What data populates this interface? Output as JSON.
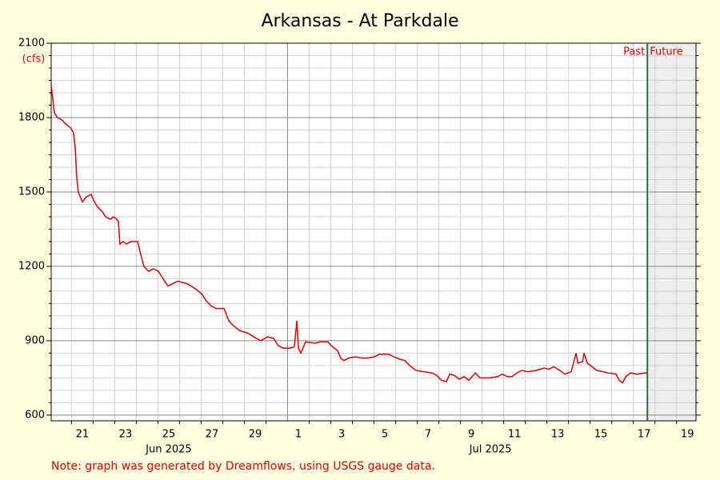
{
  "chart_data": {
    "type": "line",
    "title": "Arkansas - At Parkdale",
    "y_label": "(cfs)",
    "note": "Note: graph was generated by Dreamflows, using USGS gauge data.",
    "xlim": [
      20.06,
      49.9
    ],
    "ylim": [
      577,
      2100
    ],
    "yticks": [
      600,
      900,
      1200,
      1500,
      1800,
      2100
    ],
    "yminorticks": [
      650,
      700,
      750,
      800,
      850,
      950,
      1000,
      1050,
      1100,
      1150,
      1250,
      1300,
      1350,
      1400,
      1450,
      1550,
      1600,
      1650,
      1700,
      1750,
      1850,
      1900,
      1950,
      2000,
      2050
    ],
    "xticks": [
      {
        "value": 21.5,
        "label": "21"
      },
      {
        "value": 23.5,
        "label": "23"
      },
      {
        "value": 25.5,
        "label": "25"
      },
      {
        "value": 27.5,
        "label": "27"
      },
      {
        "value": 29.5,
        "label": "29"
      },
      {
        "value": 31.5,
        "label": "1"
      },
      {
        "value": 33.5,
        "label": "3"
      },
      {
        "value": 35.5,
        "label": "5"
      },
      {
        "value": 37.5,
        "label": "7"
      },
      {
        "value": 39.5,
        "label": "9"
      },
      {
        "value": 41.5,
        "label": "11"
      },
      {
        "value": 43.5,
        "label": "13"
      },
      {
        "value": 45.5,
        "label": "15"
      },
      {
        "value": 47.5,
        "label": "17"
      },
      {
        "value": 49.5,
        "label": "19"
      }
    ],
    "xminorticks": [
      21,
      22,
      23,
      24,
      25,
      26,
      27,
      28,
      29,
      30,
      32,
      33,
      34,
      35,
      36,
      37,
      38,
      39,
      40,
      41,
      42,
      43,
      44,
      45,
      46,
      47,
      48,
      49
    ],
    "month_lines": [
      31
    ],
    "month_labels": [
      {
        "value": 25.5,
        "label": "Jun 2025"
      },
      {
        "value": 40.39,
        "label": "Jul 2025"
      }
    ],
    "now": {
      "value": 47.65,
      "past_label": "Past",
      "future_label": "Future"
    },
    "grid": true,
    "series": [
      {
        "color": "#dd0000",
        "x": [
          20.06,
          20.13,
          20.2,
          20.35,
          20.57,
          20.72,
          20.94,
          21.09,
          21.17,
          21.24,
          21.31,
          21.5,
          21.69,
          21.91,
          22.06,
          22.2,
          22.43,
          22.57,
          22.8,
          22.94,
          23.09,
          23.17,
          23.24,
          23.39,
          23.54,
          23.76,
          24.06,
          24.2,
          24.35,
          24.57,
          24.8,
          25.02,
          25.24,
          25.46,
          25.69,
          25.91,
          26.35,
          26.72,
          27.02,
          27.24,
          27.46,
          27.69,
          28.06,
          28.28,
          28.5,
          28.8,
          29.17,
          29.54,
          29.76,
          30.06,
          30.35,
          30.57,
          30.8,
          31.09,
          31.31,
          31.43,
          31.5,
          31.61,
          31.69,
          31.83,
          32.28,
          32.5,
          32.87,
          33.02,
          33.31,
          33.46,
          33.61,
          33.83,
          34.13,
          34.43,
          34.72,
          35.02,
          35.24,
          35.69,
          35.91,
          36.2,
          36.43,
          36.65,
          36.94,
          37.31,
          37.69,
          37.91,
          38.13,
          38.35,
          38.5,
          38.72,
          38.94,
          39.17,
          39.39,
          39.54,
          39.69,
          39.91,
          40.35,
          40.72,
          40.94,
          41.17,
          41.39,
          41.61,
          41.83,
          42.13,
          42.5,
          42.87,
          43.09,
          43.31,
          43.61,
          43.83,
          44.13,
          44.35,
          44.43,
          44.65,
          44.72,
          44.87,
          45.09,
          45.31,
          45.61,
          45.83,
          46.2,
          46.35,
          46.5,
          46.65,
          46.87,
          47.17,
          47.54,
          47.65
        ],
        "values": [
          1930,
          1880,
          1820,
          1800,
          1790,
          1775,
          1760,
          1740,
          1680,
          1560,
          1500,
          1460,
          1480,
          1490,
          1460,
          1440,
          1420,
          1400,
          1390,
          1400,
          1390,
          1380,
          1290,
          1300,
          1290,
          1300,
          1300,
          1250,
          1200,
          1180,
          1190,
          1180,
          1150,
          1120,
          1130,
          1140,
          1130,
          1110,
          1090,
          1060,
          1040,
          1030,
          1030,
          980,
          960,
          940,
          930,
          910,
          900,
          915,
          910,
          880,
          870,
          870,
          875,
          980,
          870,
          850,
          865,
          895,
          890,
          895,
          895,
          880,
          860,
          830,
          820,
          830,
          835,
          830,
          830,
          835,
          845,
          845,
          835,
          825,
          820,
          800,
          780,
          775,
          770,
          760,
          740,
          735,
          765,
          760,
          745,
          755,
          740,
          755,
          770,
          750,
          750,
          755,
          765,
          755,
          755,
          770,
          780,
          775,
          780,
          790,
          785,
          795,
          780,
          765,
          775,
          850,
          810,
          815,
          850,
          810,
          795,
          780,
          775,
          770,
          765,
          740,
          730,
          755,
          770,
          765,
          770,
          770
        ]
      }
    ]
  }
}
